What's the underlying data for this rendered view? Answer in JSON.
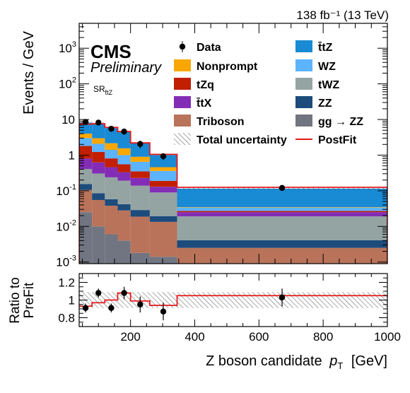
{
  "chart_data": {
    "type": "bar",
    "stacked": true,
    "log_y": true,
    "experiment": "CMS",
    "status": "Preliminary",
    "lumi_label": "138 fb⁻¹ (13 TeV)",
    "region_label": "SR",
    "region_sub": "t̄tZ",
    "xlabel": "Z boson candidate",
    "xlabel_var": "p",
    "xlabel_sub": "T",
    "xlabel_unit": "[GeV]",
    "ylabel": "Events / GeV",
    "xlim": [
      40,
      1000
    ],
    "ylim": [
      0.0009,
      5000
    ],
    "x_ticks": [
      200,
      400,
      600,
      800,
      1000
    ],
    "y_ticks": [
      {
        "value": 0.001,
        "base": "10",
        "exp": "-3"
      },
      {
        "value": 0.01,
        "base": "10",
        "exp": "-2"
      },
      {
        "value": 0.1,
        "base": "10",
        "exp": "-1"
      },
      {
        "value": 1,
        "base": "1",
        "exp": ""
      },
      {
        "value": 10,
        "base": "10",
        "exp": ""
      },
      {
        "value": 100,
        "base": "10",
        "exp": "2"
      },
      {
        "value": 1000,
        "base": "10",
        "exp": "3"
      }
    ],
    "bin_edges": [
      40,
      80,
      120,
      160,
      200,
      260,
      345,
      1000
    ],
    "series": [
      {
        "name": "gg → ZZ",
        "color": "#717581",
        "values": [
          0.025,
          0.01,
          0.006,
          0.004,
          0.0018,
          0.0014,
          0.0009
        ]
      },
      {
        "name": "Triboson",
        "color": "#b9735a",
        "values": [
          0.08,
          0.045,
          0.032,
          0.024,
          0.017,
          0.012,
          0.0016
        ]
      },
      {
        "name": "ZZ",
        "color": "#1c4b7c",
        "values": [
          0.05,
          0.03,
          0.02,
          0.014,
          0.01,
          0.006,
          0.0016
        ]
      },
      {
        "name": "tWZ",
        "color": "#94a4a2",
        "values": [
          0.25,
          0.22,
          0.18,
          0.15,
          0.11,
          0.07,
          0.015
        ]
      },
      {
        "name": "t̄tX",
        "color": "#832db6",
        "values": [
          0.4,
          0.32,
          0.22,
          0.14,
          0.09,
          0.04,
          0.006
        ]
      },
      {
        "name": "tZq",
        "color": "#c21f00",
        "values": [
          1.0,
          0.6,
          0.35,
          0.22,
          0.12,
          0.06,
          0.002
        ]
      },
      {
        "name": "WZ",
        "color": "#5cb3ff",
        "values": [
          1.2,
          0.85,
          0.6,
          0.45,
          0.3,
          0.17,
          0.0065
        ]
      },
      {
        "name": "Nonprompt",
        "color": "#f9a700",
        "values": [
          1.0,
          0.9,
          0.75,
          0.55,
          0.25,
          0.1,
          0.001
        ]
      },
      {
        "name": "t̄tZ",
        "color": "#198ad4",
        "values": [
          4.2,
          4.6,
          3.6,
          2.85,
          1.25,
          0.55,
          0.08
        ]
      }
    ],
    "postfit_total": [
      7.4,
      7.6,
      6.0,
      4.6,
      2.2,
      1.05,
      0.125
    ],
    "uncertainty_rel": [
      0.09,
      0.09,
      0.09,
      0.09,
      0.09,
      0.09,
      0.09
    ],
    "data": {
      "name": "Data",
      "x": [
        60,
        100,
        140,
        180,
        230,
        302,
        672
      ],
      "y": [
        8.5,
        8.2,
        5.5,
        4.6,
        2.05,
        0.93,
        0.12
      ],
      "yerr": [
        1.4,
        1.2,
        1.0,
        0.9,
        0.5,
        0.2,
        0.016
      ]
    },
    "legend": {
      "data_label": "Data",
      "uncertainty_label": "Total uncertainty",
      "postfit_label": "PostFit",
      "postfit_color": "#e41a1c"
    },
    "ratio": {
      "ylabel_line1": "Ratio to",
      "ylabel_line2": "PreFit",
      "ylim": [
        0.7,
        1.3
      ],
      "y_ticks": [
        0.8,
        1.0,
        1.2
      ],
      "y_tick_labels": [
        "0.8",
        "1",
        "1.2"
      ],
      "postfit": [
        0.93,
        0.97,
        1.0,
        1.08,
        0.99,
        0.94,
        1.05
      ],
      "data_y": [
        0.91,
        1.08,
        0.91,
        1.08,
        0.95,
        0.87,
        1.03
      ],
      "data_err": [
        0.05,
        0.05,
        0.05,
        0.07,
        0.09,
        0.1,
        0.1
      ],
      "unc": [
        0.09,
        0.09,
        0.09,
        0.09,
        0.09,
        0.09,
        0.09
      ]
    }
  }
}
